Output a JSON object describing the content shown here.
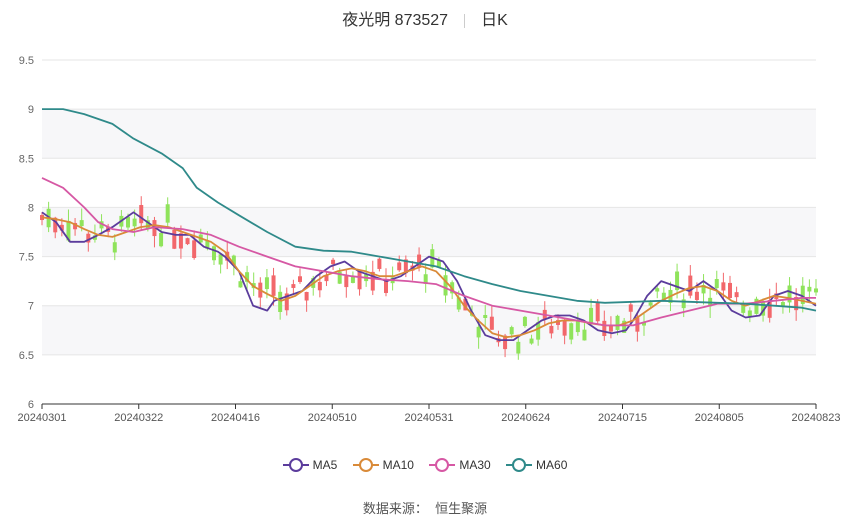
{
  "header": {
    "title": "夜光明 873527",
    "subtitle": "日K"
  },
  "source": {
    "label": "数据来源：",
    "value": "恒生聚源"
  },
  "chart_data": {
    "type": "candlestick",
    "x_ticks": [
      "20240301",
      "20240322",
      "20240416",
      "20240510",
      "20240531",
      "20240624",
      "20240715",
      "20240805",
      "20240823"
    ],
    "ylim": [
      6,
      9.5
    ],
    "y_ticks": [
      "6",
      "6.5",
      "7",
      "7.5",
      "8",
      "8.5",
      "9",
      "9.5"
    ],
    "grid": true,
    "legend_position": "bottom",
    "colors": {
      "up": "#f2676b",
      "down": "#8fe35b",
      "MA5": "#5b3c9c",
      "MA10": "#d98a38",
      "MA30": "#d658a4",
      "MA60": "#2f8a8a"
    },
    "series": [
      {
        "name": "MA5",
        "points": [
          [
            0,
            7.95
          ],
          [
            0.02,
            7.85
          ],
          [
            0.04,
            7.65
          ],
          [
            0.06,
            7.65
          ],
          [
            0.08,
            7.72
          ],
          [
            0.1,
            7.8
          ],
          [
            0.12,
            7.9
          ],
          [
            0.13,
            7.95
          ],
          [
            0.15,
            7.85
          ],
          [
            0.17,
            7.75
          ],
          [
            0.19,
            7.72
          ],
          [
            0.21,
            7.72
          ],
          [
            0.23,
            7.6
          ],
          [
            0.25,
            7.55
          ],
          [
            0.26,
            7.5
          ],
          [
            0.28,
            7.35
          ],
          [
            0.3,
            7.0
          ],
          [
            0.32,
            6.95
          ],
          [
            0.33,
            7.05
          ],
          [
            0.35,
            7.1
          ],
          [
            0.37,
            7.15
          ],
          [
            0.39,
            7.3
          ],
          [
            0.41,
            7.4
          ],
          [
            0.43,
            7.45
          ],
          [
            0.45,
            7.35
          ],
          [
            0.47,
            7.3
          ],
          [
            0.49,
            7.25
          ],
          [
            0.51,
            7.3
          ],
          [
            0.53,
            7.4
          ],
          [
            0.55,
            7.5
          ],
          [
            0.57,
            7.45
          ],
          [
            0.59,
            7.25
          ],
          [
            0.61,
            6.95
          ],
          [
            0.63,
            6.7
          ],
          [
            0.65,
            6.65
          ],
          [
            0.67,
            6.65
          ],
          [
            0.69,
            6.75
          ],
          [
            0.71,
            6.85
          ],
          [
            0.73,
            6.9
          ],
          [
            0.75,
            6.9
          ],
          [
            0.77,
            6.85
          ],
          [
            0.79,
            6.75
          ],
          [
            0.81,
            6.72
          ],
          [
            0.83,
            6.75
          ],
          [
            0.84,
            6.85
          ],
          [
            0.86,
            7.1
          ],
          [
            0.88,
            7.25
          ],
          [
            0.9,
            7.2
          ],
          [
            0.92,
            7.15
          ],
          [
            0.94,
            7.25
          ],
          [
            0.96,
            7.15
          ],
          [
            0.98,
            6.95
          ],
          [
            1.0,
            6.88
          ],
          [
            1.02,
            6.9
          ],
          [
            1.04,
            7.1
          ],
          [
            1.06,
            7.15
          ],
          [
            1.08,
            7.1
          ],
          [
            1.1,
            7.0
          ]
        ]
      },
      {
        "name": "MA10",
        "points": [
          [
            0,
            7.9
          ],
          [
            0.02,
            7.88
          ],
          [
            0.04,
            7.85
          ],
          [
            0.06,
            7.78
          ],
          [
            0.08,
            7.72
          ],
          [
            0.1,
            7.7
          ],
          [
            0.12,
            7.75
          ],
          [
            0.14,
            7.8
          ],
          [
            0.16,
            7.82
          ],
          [
            0.18,
            7.8
          ],
          [
            0.2,
            7.75
          ],
          [
            0.22,
            7.7
          ],
          [
            0.24,
            7.65
          ],
          [
            0.26,
            7.55
          ],
          [
            0.28,
            7.35
          ],
          [
            0.3,
            7.2
          ],
          [
            0.32,
            7.12
          ],
          [
            0.34,
            7.05
          ],
          [
            0.36,
            7.1
          ],
          [
            0.38,
            7.2
          ],
          [
            0.4,
            7.3
          ],
          [
            0.42,
            7.35
          ],
          [
            0.44,
            7.38
          ],
          [
            0.46,
            7.35
          ],
          [
            0.48,
            7.3
          ],
          [
            0.5,
            7.3
          ],
          [
            0.52,
            7.35
          ],
          [
            0.54,
            7.4
          ],
          [
            0.56,
            7.35
          ],
          [
            0.58,
            7.2
          ],
          [
            0.6,
            7.0
          ],
          [
            0.62,
            6.85
          ],
          [
            0.64,
            6.72
          ],
          [
            0.66,
            6.68
          ],
          [
            0.68,
            6.7
          ],
          [
            0.7,
            6.75
          ],
          [
            0.72,
            6.82
          ],
          [
            0.74,
            6.85
          ],
          [
            0.76,
            6.85
          ],
          [
            0.78,
            6.82
          ],
          [
            0.8,
            6.8
          ],
          [
            0.82,
            6.8
          ],
          [
            0.84,
            6.85
          ],
          [
            0.86,
            6.95
          ],
          [
            0.88,
            7.05
          ],
          [
            0.9,
            7.12
          ],
          [
            0.92,
            7.18
          ],
          [
            0.94,
            7.2
          ],
          [
            0.96,
            7.15
          ],
          [
            0.98,
            7.05
          ],
          [
            1.0,
            7.0
          ],
          [
            1.02,
            7.05
          ],
          [
            1.04,
            7.1
          ],
          [
            1.06,
            7.08
          ],
          [
            1.08,
            7.05
          ],
          [
            1.1,
            7.02
          ]
        ]
      },
      {
        "name": "MA30",
        "points": [
          [
            0,
            8.3
          ],
          [
            0.03,
            8.2
          ],
          [
            0.06,
            8.0
          ],
          [
            0.08,
            7.85
          ],
          [
            0.1,
            7.78
          ],
          [
            0.13,
            7.75
          ],
          [
            0.16,
            7.8
          ],
          [
            0.2,
            7.78
          ],
          [
            0.24,
            7.72
          ],
          [
            0.28,
            7.6
          ],
          [
            0.32,
            7.5
          ],
          [
            0.36,
            7.4
          ],
          [
            0.4,
            7.35
          ],
          [
            0.44,
            7.3
          ],
          [
            0.48,
            7.27
          ],
          [
            0.52,
            7.25
          ],
          [
            0.56,
            7.22
          ],
          [
            0.6,
            7.1
          ],
          [
            0.64,
            7.0
          ],
          [
            0.68,
            6.95
          ],
          [
            0.72,
            6.9
          ],
          [
            0.76,
            6.85
          ],
          [
            0.8,
            6.8
          ],
          [
            0.84,
            6.8
          ],
          [
            0.88,
            6.88
          ],
          [
            0.92,
            6.95
          ],
          [
            0.96,
            7.02
          ],
          [
            1.0,
            7.02
          ],
          [
            1.04,
            7.05
          ],
          [
            1.08,
            7.08
          ],
          [
            1.1,
            7.08
          ]
        ]
      },
      {
        "name": "MA60",
        "points": [
          [
            0,
            9.0
          ],
          [
            0.03,
            9.0
          ],
          [
            0.06,
            8.95
          ],
          [
            0.1,
            8.85
          ],
          [
            0.13,
            8.7
          ],
          [
            0.17,
            8.55
          ],
          [
            0.2,
            8.4
          ],
          [
            0.22,
            8.2
          ],
          [
            0.25,
            8.05
          ],
          [
            0.28,
            7.92
          ],
          [
            0.32,
            7.75
          ],
          [
            0.36,
            7.6
          ],
          [
            0.4,
            7.56
          ],
          [
            0.44,
            7.55
          ],
          [
            0.48,
            7.5
          ],
          [
            0.52,
            7.45
          ],
          [
            0.56,
            7.4
          ],
          [
            0.6,
            7.3
          ],
          [
            0.64,
            7.22
          ],
          [
            0.68,
            7.15
          ],
          [
            0.72,
            7.1
          ],
          [
            0.76,
            7.05
          ],
          [
            0.8,
            7.03
          ],
          [
            0.84,
            7.04
          ],
          [
            0.88,
            7.05
          ],
          [
            0.92,
            7.04
          ],
          [
            0.96,
            7.03
          ],
          [
            1.0,
            7.02
          ],
          [
            1.04,
            7.0
          ],
          [
            1.08,
            6.98
          ],
          [
            1.1,
            6.95
          ]
        ]
      }
    ]
  }
}
